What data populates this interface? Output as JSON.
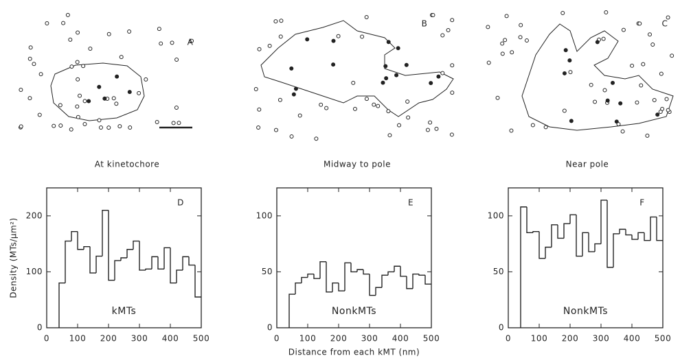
{
  "diagrams": [
    {
      "label": "A",
      "caption": "At kinetochore"
    },
    {
      "label": "B",
      "caption": "Midway to pole"
    },
    {
      "label": "C",
      "caption": "Near pole"
    }
  ],
  "chart_data": [
    {
      "type": "histogram",
      "panel_label": "D",
      "annotation": "kMTs",
      "ylabel": "Density (MTs/μm²)",
      "bins": [
        40,
        60,
        80,
        100,
        120,
        140,
        160,
        180,
        200,
        220,
        240,
        260,
        280,
        300,
        320,
        340,
        360,
        380,
        400,
        420,
        440,
        460,
        480,
        500
      ],
      "values": [
        80,
        155,
        172,
        140,
        145,
        98,
        128,
        210,
        85,
        120,
        125,
        140,
        155,
        103,
        105,
        127,
        105,
        143,
        80,
        103,
        127,
        112,
        55
      ],
      "xlim": [
        0,
        500
      ],
      "xticks": [
        0,
        100,
        200,
        300,
        400,
        500
      ],
      "ylim": [
        0,
        250
      ],
      "yticks": [
        0,
        100,
        200
      ]
    },
    {
      "type": "histogram",
      "panel_label": "E",
      "annotation": "NonkMTs",
      "xlabel": "Distance from each kMT (nm)",
      "bins": [
        40,
        60,
        80,
        100,
        120,
        140,
        160,
        180,
        200,
        220,
        240,
        260,
        280,
        300,
        320,
        340,
        360,
        380,
        400,
        420,
        440,
        460,
        480,
        500
      ],
      "values": [
        30,
        40,
        45,
        48,
        44,
        59,
        32,
        40,
        33,
        58,
        50,
        52,
        48,
        29,
        36,
        47,
        50,
        55,
        46,
        35,
        48,
        47,
        39
      ],
      "xlim": [
        0,
        500
      ],
      "xticks": [
        0,
        100,
        200,
        300,
        400,
        500
      ],
      "ylim": [
        0,
        125
      ],
      "yticks": [
        0,
        50,
        100
      ]
    },
    {
      "type": "histogram",
      "panel_label": "F",
      "annotation": "NonkMTs",
      "bins": [
        40,
        60,
        80,
        100,
        120,
        140,
        160,
        180,
        200,
        220,
        240,
        260,
        280,
        300,
        320,
        340,
        360,
        380,
        400,
        420,
        440,
        460,
        480,
        500
      ],
      "values": [
        108,
        85,
        86,
        62,
        72,
        92,
        80,
        93,
        101,
        64,
        85,
        68,
        75,
        114,
        54,
        84,
        88,
        83,
        79,
        85,
        78,
        99,
        78
      ],
      "xlim": [
        0,
        500
      ],
      "xticks": [
        0,
        100,
        200,
        300,
        400,
        500
      ],
      "ylim": [
        0,
        125
      ],
      "yticks": [
        0,
        50,
        100
      ]
    }
  ]
}
